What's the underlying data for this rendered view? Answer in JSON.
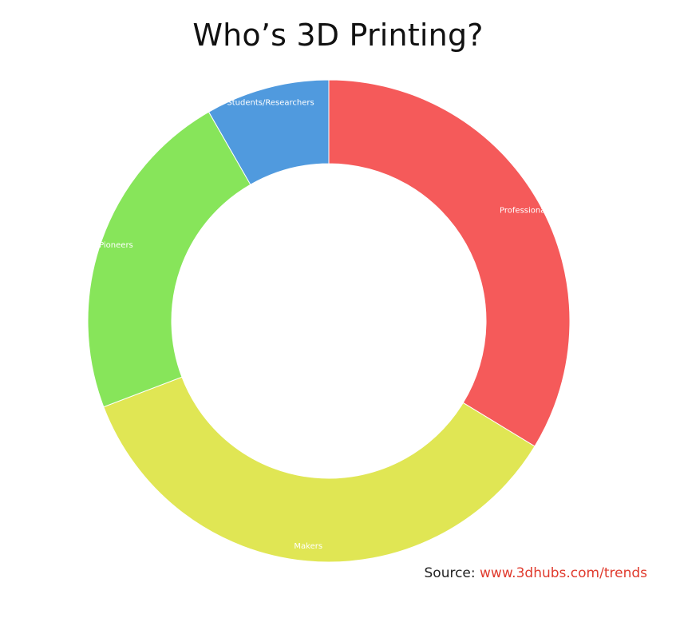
{
  "title": "Who’s 3D Printing?",
  "source": {
    "label": "Source:",
    "link_text": "www.3dhubs.com/trends"
  },
  "chart_data": {
    "type": "pie",
    "donut": true,
    "title": "Who’s 3D Printing?",
    "categories": [
      "Professionals",
      "Makers",
      "Pioneers",
      "Students/Researchers"
    ],
    "values": [
      33.7,
      35.5,
      22.5,
      8.3
    ],
    "colors": [
      "#f55a5a",
      "#e0e654",
      "#87e55a",
      "#509ade"
    ],
    "label_color": "#ffffff"
  }
}
